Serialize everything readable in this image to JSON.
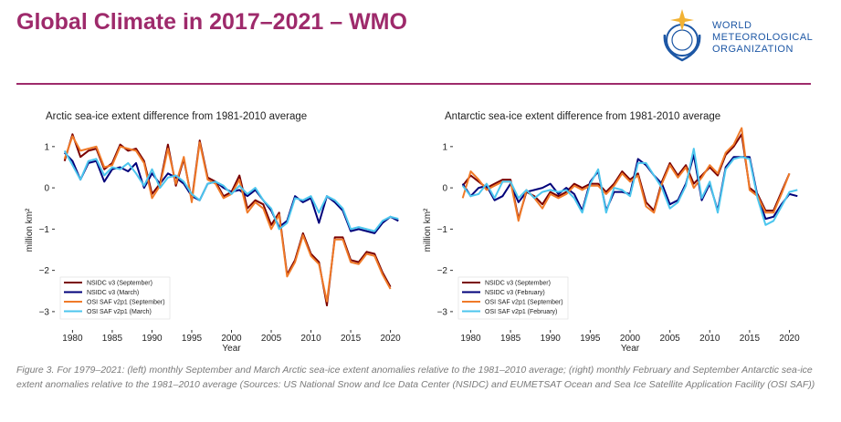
{
  "header": {
    "title": "Global Climate in 2017–2021 – WMO",
    "logo": [
      "WORLD",
      "METEOROLOGICAL",
      "ORGANIZATION"
    ]
  },
  "caption": "Figure 3. For 1979–2021: (left) monthly September and March Arctic sea-ice extent anomalies relative to the 1981–2010 average; (right) monthly February and September Antarctic sea-ice extent anomalies relative to the 1981–2010 average (Sources: US National Snow and Ice Data Center (NSIDC) and EUMETSAT Ocean and Sea Ice Satellite Application Facility (OSI SAF))",
  "chart_data": [
    {
      "type": "line",
      "title": "Arctic sea-ice extent difference from 1981-2010 average",
      "xlabel": "Year",
      "ylabel": "million km²",
      "x": [
        1979,
        1980,
        1981,
        1982,
        1983,
        1984,
        1985,
        1986,
        1987,
        1988,
        1989,
        1990,
        1991,
        1992,
        1993,
        1994,
        1995,
        1996,
        1997,
        1998,
        1999,
        2000,
        2001,
        2002,
        2003,
        2004,
        2005,
        2006,
        2007,
        2008,
        2009,
        2010,
        2011,
        2012,
        2013,
        2014,
        2015,
        2016,
        2017,
        2018,
        2019,
        2020,
        2021
      ],
      "xlim": [
        1978,
        2022
      ],
      "xticks": [
        1980,
        1985,
        1990,
        1995,
        2000,
        2005,
        2010,
        2015,
        2020
      ],
      "ylim": [
        -3.4,
        1.35
      ],
      "yticks": [
        {
          "value": -3,
          "label": "−3"
        },
        {
          "value": -2,
          "label": "−2"
        },
        {
          "value": -1,
          "label": "−1"
        },
        0,
        1
      ],
      "legend": "lower left",
      "series": [
        {
          "name": "NSIDC v3 (September)",
          "color": "#7a0000",
          "values": [
            0.65,
            1.3,
            0.75,
            0.9,
            0.95,
            0.45,
            0.6,
            1.05,
            0.9,
            0.95,
            0.65,
            -0.15,
            0.1,
            1.05,
            0.05,
            0.7,
            -0.3,
            1.15,
            0.25,
            0.15,
            -0.2,
            -0.1,
            0.3,
            -0.5,
            -0.3,
            -0.4,
            -0.9,
            -0.6,
            -2.1,
            -1.75,
            -1.1,
            -1.6,
            -1.8,
            -2.85,
            -1.2,
            -1.2,
            -1.75,
            -1.8,
            -1.55,
            -1.6,
            -2.05,
            -2.4,
            null
          ]
        },
        {
          "name": "NSIDC v3 (March)",
          "color": "#00007a",
          "values": [
            0.85,
            0.65,
            0.2,
            0.6,
            0.65,
            0.15,
            0.45,
            0.5,
            0.4,
            0.6,
            0.0,
            0.35,
            0.1,
            0.35,
            0.25,
            0.1,
            -0.2,
            -0.3,
            0.1,
            0.15,
            0.0,
            -0.1,
            -0.05,
            -0.2,
            -0.05,
            -0.3,
            -0.55,
            -0.95,
            -0.8,
            -0.2,
            -0.35,
            -0.25,
            -0.85,
            -0.2,
            -0.35,
            -0.55,
            -1.05,
            -1.0,
            -1.05,
            -1.1,
            -0.85,
            -0.7,
            -0.8
          ]
        },
        {
          "name": "OSI SAF v2p1 (September)",
          "color": "#f07a28",
          "values": [
            0.7,
            1.25,
            0.9,
            0.95,
            1.0,
            0.5,
            0.55,
            1.0,
            0.95,
            0.9,
            0.6,
            -0.25,
            0.05,
            0.95,
            0.1,
            0.75,
            -0.35,
            1.1,
            0.2,
            0.1,
            -0.25,
            -0.15,
            0.2,
            -0.6,
            -0.35,
            -0.5,
            -1.0,
            -0.65,
            -2.15,
            -1.8,
            -1.15,
            -1.65,
            -1.85,
            -2.75,
            -1.25,
            -1.25,
            -1.8,
            -1.85,
            -1.6,
            -1.65,
            -2.1,
            -2.45,
            null
          ]
        },
        {
          "name": "OSI SAF v2p1 (March)",
          "color": "#4cc6ee",
          "values": [
            0.9,
            0.55,
            0.2,
            0.65,
            0.7,
            0.3,
            0.5,
            0.45,
            0.6,
            0.35,
            0.05,
            0.45,
            0.0,
            0.25,
            0.3,
            0.15,
            -0.15,
            -0.3,
            0.1,
            0.15,
            0.05,
            -0.15,
            0.05,
            -0.15,
            0.0,
            -0.3,
            -0.5,
            -1.0,
            -0.85,
            -0.25,
            -0.3,
            -0.2,
            -0.6,
            -0.2,
            -0.3,
            -0.5,
            -1.0,
            -0.95,
            -1.0,
            -1.05,
            -0.8,
            -0.7,
            -0.75
          ]
        }
      ]
    },
    {
      "type": "line",
      "title": "Antarctic sea-ice extent difference from 1981-2010 average",
      "xlabel": "Year",
      "ylabel": "million km²",
      "x": [
        1979,
        1980,
        1981,
        1982,
        1983,
        1984,
        1985,
        1986,
        1987,
        1988,
        1989,
        1990,
        1991,
        1992,
        1993,
        1994,
        1995,
        1996,
        1997,
        1998,
        1999,
        2000,
        2001,
        2002,
        2003,
        2004,
        2005,
        2006,
        2007,
        2008,
        2009,
        2010,
        2011,
        2012,
        2013,
        2014,
        2015,
        2016,
        2017,
        2018,
        2019,
        2020,
        2021
      ],
      "xlim": [
        1978,
        2022
      ],
      "xticks": [
        1980,
        1985,
        1990,
        1995,
        2000,
        2005,
        2010,
        2015,
        2020
      ],
      "ylim": [
        -3.4,
        1.35
      ],
      "yticks": [
        {
          "value": -3,
          "label": "−3"
        },
        {
          "value": -2,
          "label": "−2"
        },
        {
          "value": -1,
          "label": "−1"
        },
        0,
        1
      ],
      "legend": "lower left",
      "series": [
        {
          "name": "NSIDC v3 (September)",
          "color": "#7a0000",
          "values": [
            0.05,
            0.3,
            0.15,
            0.0,
            0.1,
            0.2,
            0.2,
            -0.75,
            -0.1,
            -0.2,
            -0.4,
            -0.1,
            -0.2,
            -0.1,
            0.1,
            0.0,
            0.1,
            0.1,
            -0.1,
            0.1,
            0.4,
            0.2,
            0.35,
            -0.35,
            -0.55,
            0.15,
            0.6,
            0.3,
            0.55,
            0.1,
            0.3,
            0.5,
            0.3,
            0.8,
            1.0,
            1.3,
            0.0,
            -0.15,
            -0.55,
            -0.55,
            -0.1,
            0.35,
            null
          ]
        },
        {
          "name": "NSIDC v3 (February)",
          "color": "#00007a",
          "values": [
            0.1,
            -0.2,
            0.0,
            0.05,
            -0.3,
            -0.2,
            0.1,
            -0.35,
            -0.1,
            -0.05,
            0.0,
            0.1,
            -0.15,
            0.0,
            -0.15,
            -0.55,
            0.15,
            0.4,
            -0.55,
            -0.1,
            -0.1,
            -0.15,
            0.7,
            0.55,
            0.3,
            0.1,
            -0.4,
            -0.3,
            0.1,
            0.8,
            -0.3,
            0.1,
            -0.55,
            0.5,
            0.75,
            0.75,
            0.75,
            -0.2,
            -0.75,
            -0.7,
            -0.4,
            -0.15,
            -0.2
          ]
        },
        {
          "name": "OSI SAF v2p1 (September)",
          "color": "#f07a28",
          "values": [
            -0.25,
            0.4,
            0.2,
            -0.05,
            0.05,
            0.15,
            0.15,
            -0.8,
            -0.05,
            -0.25,
            -0.5,
            -0.15,
            -0.25,
            -0.15,
            0.05,
            -0.05,
            0.05,
            0.05,
            -0.15,
            0.05,
            0.35,
            0.15,
            0.3,
            -0.45,
            -0.6,
            0.1,
            0.55,
            0.25,
            0.5,
            0.0,
            0.25,
            0.55,
            0.35,
            0.85,
            1.05,
            1.45,
            -0.05,
            -0.2,
            -0.6,
            -0.6,
            -0.15,
            0.35,
            null
          ]
        },
        {
          "name": "OSI SAF v2p1 (February)",
          "color": "#4cc6ee",
          "values": [
            0.05,
            -0.2,
            -0.15,
            0.1,
            -0.25,
            0.15,
            0.15,
            -0.25,
            -0.05,
            -0.25,
            -0.1,
            -0.05,
            -0.1,
            -0.05,
            -0.25,
            -0.6,
            0.1,
            0.45,
            -0.6,
            0.0,
            -0.05,
            -0.2,
            0.6,
            0.6,
            0.3,
            0.0,
            -0.5,
            -0.35,
            0.05,
            0.95,
            -0.25,
            0.15,
            -0.6,
            0.45,
            0.7,
            0.75,
            0.7,
            -0.25,
            -0.9,
            -0.8,
            -0.45,
            -0.1,
            -0.05
          ]
        }
      ]
    }
  ]
}
